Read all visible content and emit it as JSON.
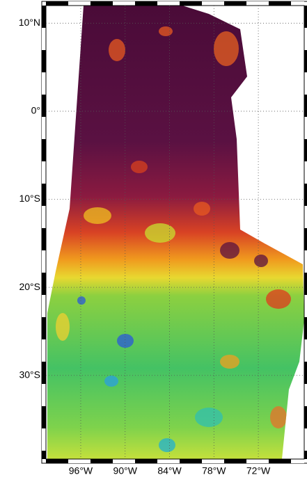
{
  "map": {
    "lon_lim": [
      -100.7,
      -65.8
    ],
    "lat_lim": [
      -39.5,
      12
    ],
    "lon_ticks": [
      {
        "value": -96,
        "label": "96°W"
      },
      {
        "value": -90,
        "label": "90°W"
      },
      {
        "value": -84,
        "label": "84°W"
      },
      {
        "value": -78,
        "label": "78°W"
      },
      {
        "value": -72,
        "label": "72°W"
      }
    ],
    "lat_ticks": [
      {
        "value": 10,
        "label": "10°N"
      },
      {
        "value": 0,
        "label": "0°"
      },
      {
        "value": -10,
        "label": "10°S"
      },
      {
        "value": -20,
        "label": "20°S"
      },
      {
        "value": -30,
        "label": "30°S"
      }
    ],
    "grid": true
  }
}
